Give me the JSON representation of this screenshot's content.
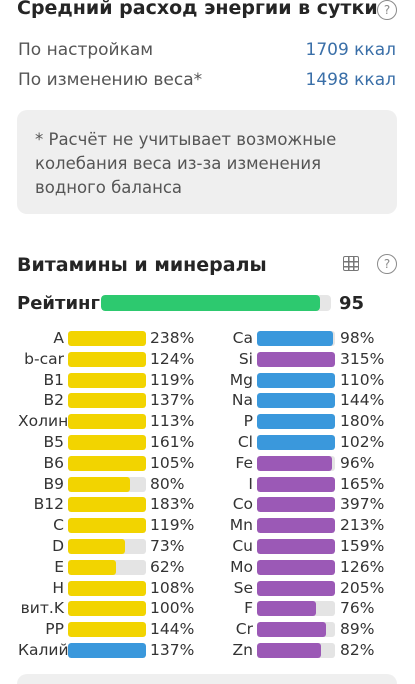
{
  "energy": {
    "title": "Средний расход энергии в сутки",
    "rows": [
      {
        "label": "По настройкам",
        "value": "1709 ккал"
      },
      {
        "label": "По изменению веса*",
        "value": "1498 ккал"
      }
    ],
    "note": "* Расчёт не учитывает возможные колебания веса из-за изменения водного баланса"
  },
  "vitamins": {
    "title": "Витамины и минералы",
    "rating_label": "Рейтинг",
    "rating_value": "95",
    "rating_fraction": 0.95,
    "colors": {
      "vitamin": "#f2d400",
      "mineral_blue": "#3a98dc",
      "mineral_purple": "#9b59b6",
      "rating": "#2dc96f",
      "track": "#e4e4e4"
    },
    "left": [
      {
        "name": "A",
        "pct": "238%",
        "fill": 1.0,
        "color": "vitamin"
      },
      {
        "name": "b-car",
        "pct": "124%",
        "fill": 1.0,
        "color": "vitamin"
      },
      {
        "name": "B1",
        "pct": "119%",
        "fill": 1.0,
        "color": "vitamin"
      },
      {
        "name": "B2",
        "pct": "137%",
        "fill": 1.0,
        "color": "vitamin"
      },
      {
        "name": "Холин",
        "pct": "113%",
        "fill": 1.0,
        "color": "vitamin"
      },
      {
        "name": "B5",
        "pct": "161%",
        "fill": 1.0,
        "color": "vitamin"
      },
      {
        "name": "B6",
        "pct": "105%",
        "fill": 1.0,
        "color": "vitamin"
      },
      {
        "name": "B9",
        "pct": "80%",
        "fill": 0.8,
        "color": "vitamin"
      },
      {
        "name": "B12",
        "pct": "183%",
        "fill": 1.0,
        "color": "vitamin"
      },
      {
        "name": "C",
        "pct": "119%",
        "fill": 1.0,
        "color": "vitamin"
      },
      {
        "name": "D",
        "pct": "73%",
        "fill": 0.73,
        "color": "vitamin"
      },
      {
        "name": "E",
        "pct": "62%",
        "fill": 0.62,
        "color": "vitamin"
      },
      {
        "name": "H",
        "pct": "108%",
        "fill": 1.0,
        "color": "vitamin"
      },
      {
        "name": "вит.K",
        "pct": "100%",
        "fill": 1.0,
        "color": "vitamin"
      },
      {
        "name": "PP",
        "pct": "144%",
        "fill": 1.0,
        "color": "vitamin"
      },
      {
        "name": "Калий",
        "pct": "137%",
        "fill": 1.0,
        "color": "mineral_blue"
      }
    ],
    "right": [
      {
        "name": "Ca",
        "pct": "98%",
        "fill": 0.98,
        "color": "mineral_blue"
      },
      {
        "name": "Si",
        "pct": "315%",
        "fill": 1.0,
        "color": "mineral_purple"
      },
      {
        "name": "Mg",
        "pct": "110%",
        "fill": 1.0,
        "color": "mineral_blue"
      },
      {
        "name": "Na",
        "pct": "144%",
        "fill": 1.0,
        "color": "mineral_blue"
      },
      {
        "name": "P",
        "pct": "180%",
        "fill": 1.0,
        "color": "mineral_blue"
      },
      {
        "name": "Cl",
        "pct": "102%",
        "fill": 1.0,
        "color": "mineral_blue"
      },
      {
        "name": "Fe",
        "pct": "96%",
        "fill": 0.96,
        "color": "mineral_purple"
      },
      {
        "name": "I",
        "pct": "165%",
        "fill": 1.0,
        "color": "mineral_purple"
      },
      {
        "name": "Co",
        "pct": "397%",
        "fill": 1.0,
        "color": "mineral_purple"
      },
      {
        "name": "Mn",
        "pct": "213%",
        "fill": 1.0,
        "color": "mineral_purple"
      },
      {
        "name": "Cu",
        "pct": "159%",
        "fill": 1.0,
        "color": "mineral_purple"
      },
      {
        "name": "Mo",
        "pct": "126%",
        "fill": 1.0,
        "color": "mineral_purple"
      },
      {
        "name": "Se",
        "pct": "205%",
        "fill": 1.0,
        "color": "mineral_purple"
      },
      {
        "name": "F",
        "pct": "76%",
        "fill": 0.76,
        "color": "mineral_purple"
      },
      {
        "name": "Cr",
        "pct": "89%",
        "fill": 0.89,
        "color": "mineral_purple"
      },
      {
        "name": "Zn",
        "pct": "82%",
        "fill": 0.82,
        "color": "mineral_purple"
      }
    ]
  }
}
